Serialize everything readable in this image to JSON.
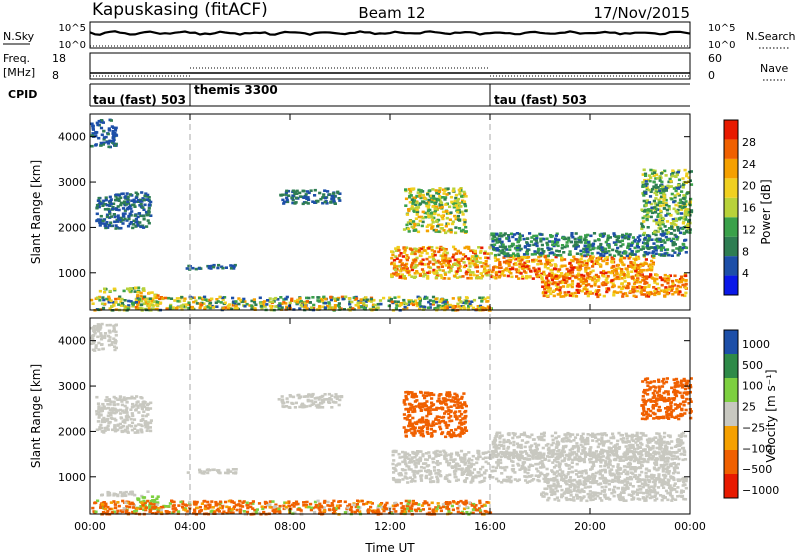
{
  "header": {
    "station": "Kapuskasing (fitACF)",
    "beam": "Beam 12",
    "date": "17/Nov/2015"
  },
  "strips": {
    "nsky_label": "N.Sky",
    "nsky_ticks": [
      "10^5",
      "10^0"
    ],
    "nsearch_ticks": [
      "10^5",
      "10^0"
    ],
    "nsearch_label": "N.Search",
    "freq_label_1": "Freq.",
    "freq_label_2": "[MHz]",
    "freq_ticks": [
      "18",
      "8"
    ],
    "nave_ticks": [
      "60",
      "0"
    ],
    "nave_label": "Nave",
    "cpid_label": "CPID",
    "cpid_segments": [
      {
        "label": "tau (fast) 503",
        "start": 0,
        "end": 4
      },
      {
        "label": "themis 3300",
        "start": 4,
        "end": 16
      },
      {
        "label": "tau (fast) 503",
        "start": 16,
        "end": 24
      }
    ]
  },
  "xaxis": {
    "title": "Time UT",
    "ticks": [
      "00:00",
      "04:00",
      "08:00",
      "12:00",
      "16:00",
      "20:00",
      "00:00"
    ]
  },
  "colors": {
    "power": [
      "#0a18e8",
      "#1d4fa8",
      "#2e7d52",
      "#3aa14a",
      "#b8d23a",
      "#f0d020",
      "#f5a000",
      "#f06000",
      "#e81a00"
    ],
    "velocity": [
      "#e81a00",
      "#f06000",
      "#f5a000",
      "#c8c8c0",
      "#7dd040",
      "#2e8a48",
      "#1d4fa8"
    ]
  },
  "chart_data": [
    {
      "type": "heatmap",
      "title": "Power",
      "ylabel": "Slant Range [km]",
      "xlabel": "",
      "xlim": [
        0,
        24
      ],
      "ylim": [
        180,
        4500
      ],
      "yticks": [
        "1000",
        "2000",
        "3000",
        "4000"
      ],
      "colorbar_label": "Power [dB]",
      "colorbar_ticks": [
        "4",
        "8",
        "12",
        "16",
        "20",
        "24",
        "28"
      ],
      "colorbar_range": [
        0,
        32
      ],
      "grid": false,
      "regions": [
        {
          "t": [
            0.3,
            2.3
          ],
          "r": [
            600,
            700
          ],
          "v": [
            8,
            20
          ]
        },
        {
          "t": [
            1.8,
            2.7
          ],
          "r": [
            300,
            600
          ],
          "v": [
            16,
            28
          ]
        },
        {
          "t": [
            0.2,
            2.4
          ],
          "r": [
            2000,
            2800
          ],
          "v": [
            4,
            10
          ]
        },
        {
          "t": [
            0.0,
            1.0
          ],
          "r": [
            3800,
            4400
          ],
          "v": [
            4,
            8
          ]
        },
        {
          "t": [
            3.8,
            5.8
          ],
          "r": [
            1100,
            1200
          ],
          "v": [
            4,
            10
          ]
        },
        {
          "t": [
            0.0,
            16.0
          ],
          "r": [
            200,
            500
          ],
          "v": [
            4,
            26
          ]
        },
        {
          "t": [
            7.5,
            10.0
          ],
          "r": [
            2550,
            2850
          ],
          "v": [
            4,
            10
          ]
        },
        {
          "t": [
            12.0,
            16.0
          ],
          "r": [
            900,
            1600
          ],
          "v": [
            14,
            30
          ]
        },
        {
          "t": [
            12.5,
            15.0
          ],
          "r": [
            1900,
            2900
          ],
          "v": [
            8,
            24
          ]
        },
        {
          "t": [
            16.0,
            22.5
          ],
          "r": [
            900,
            1400
          ],
          "v": [
            18,
            30
          ]
        },
        {
          "t": [
            16.0,
            23.8
          ],
          "r": [
            1400,
            1900
          ],
          "v": [
            4,
            14
          ]
        },
        {
          "t": [
            18.0,
            23.8
          ],
          "r": [
            500,
            1000
          ],
          "v": [
            18,
            30
          ]
        },
        {
          "t": [
            22.0,
            24.0
          ],
          "r": [
            1900,
            3300
          ],
          "v": [
            6,
            20
          ]
        },
        {
          "t": [
            14.0,
            16.0
          ],
          "r": [
            200,
            300
          ],
          "v": [
            18,
            28
          ]
        }
      ]
    },
    {
      "type": "heatmap",
      "title": "Velocity",
      "ylabel": "Slant Range [km]",
      "xlabel": "Time UT",
      "xlim": [
        0,
        24
      ],
      "ylim": [
        180,
        4500
      ],
      "yticks": [
        "1000",
        "2000",
        "3000",
        "4000"
      ],
      "colorbar_label": "Velocity [m s⁻¹]",
      "colorbar_ticks": [
        "1000",
        "500",
        "100",
        "25",
        "−25",
        "−100",
        "−500",
        "−1000"
      ],
      "grid": false,
      "regions": [
        {
          "t": [
            0.3,
            2.3
          ],
          "r": [
            600,
            700
          ],
          "v": [
            -25,
            25
          ]
        },
        {
          "t": [
            1.8,
            2.7
          ],
          "r": [
            300,
            600
          ],
          "v": [
            25,
            100
          ]
        },
        {
          "t": [
            0.2,
            2.4
          ],
          "r": [
            2000,
            2800
          ],
          "v": [
            -25,
            25
          ]
        },
        {
          "t": [
            0.0,
            1.0
          ],
          "r": [
            3800,
            4400
          ],
          "v": [
            -25,
            25
          ]
        },
        {
          "t": [
            3.8,
            5.8
          ],
          "r": [
            1100,
            1200
          ],
          "v": [
            -25,
            25
          ]
        },
        {
          "t": [
            0.0,
            16.0
          ],
          "r": [
            200,
            500
          ],
          "v": [
            -500,
            100
          ]
        },
        {
          "t": [
            7.5,
            10.0
          ],
          "r": [
            2550,
            2850
          ],
          "v": [
            -25,
            25
          ]
        },
        {
          "t": [
            12.0,
            23.5
          ],
          "r": [
            900,
            1600
          ],
          "v": [
            -25,
            25
          ]
        },
        {
          "t": [
            12.5,
            15.0
          ],
          "r": [
            1900,
            2900
          ],
          "v": [
            -500,
            -100
          ]
        },
        {
          "t": [
            16.0,
            23.8
          ],
          "r": [
            1400,
            2000
          ],
          "v": [
            -25,
            25
          ]
        },
        {
          "t": [
            18.0,
            23.8
          ],
          "r": [
            500,
            1000
          ],
          "v": [
            -25,
            25
          ]
        },
        {
          "t": [
            22.0,
            24.0
          ],
          "r": [
            2300,
            3200
          ],
          "v": [
            -500,
            -100
          ]
        }
      ]
    }
  ]
}
